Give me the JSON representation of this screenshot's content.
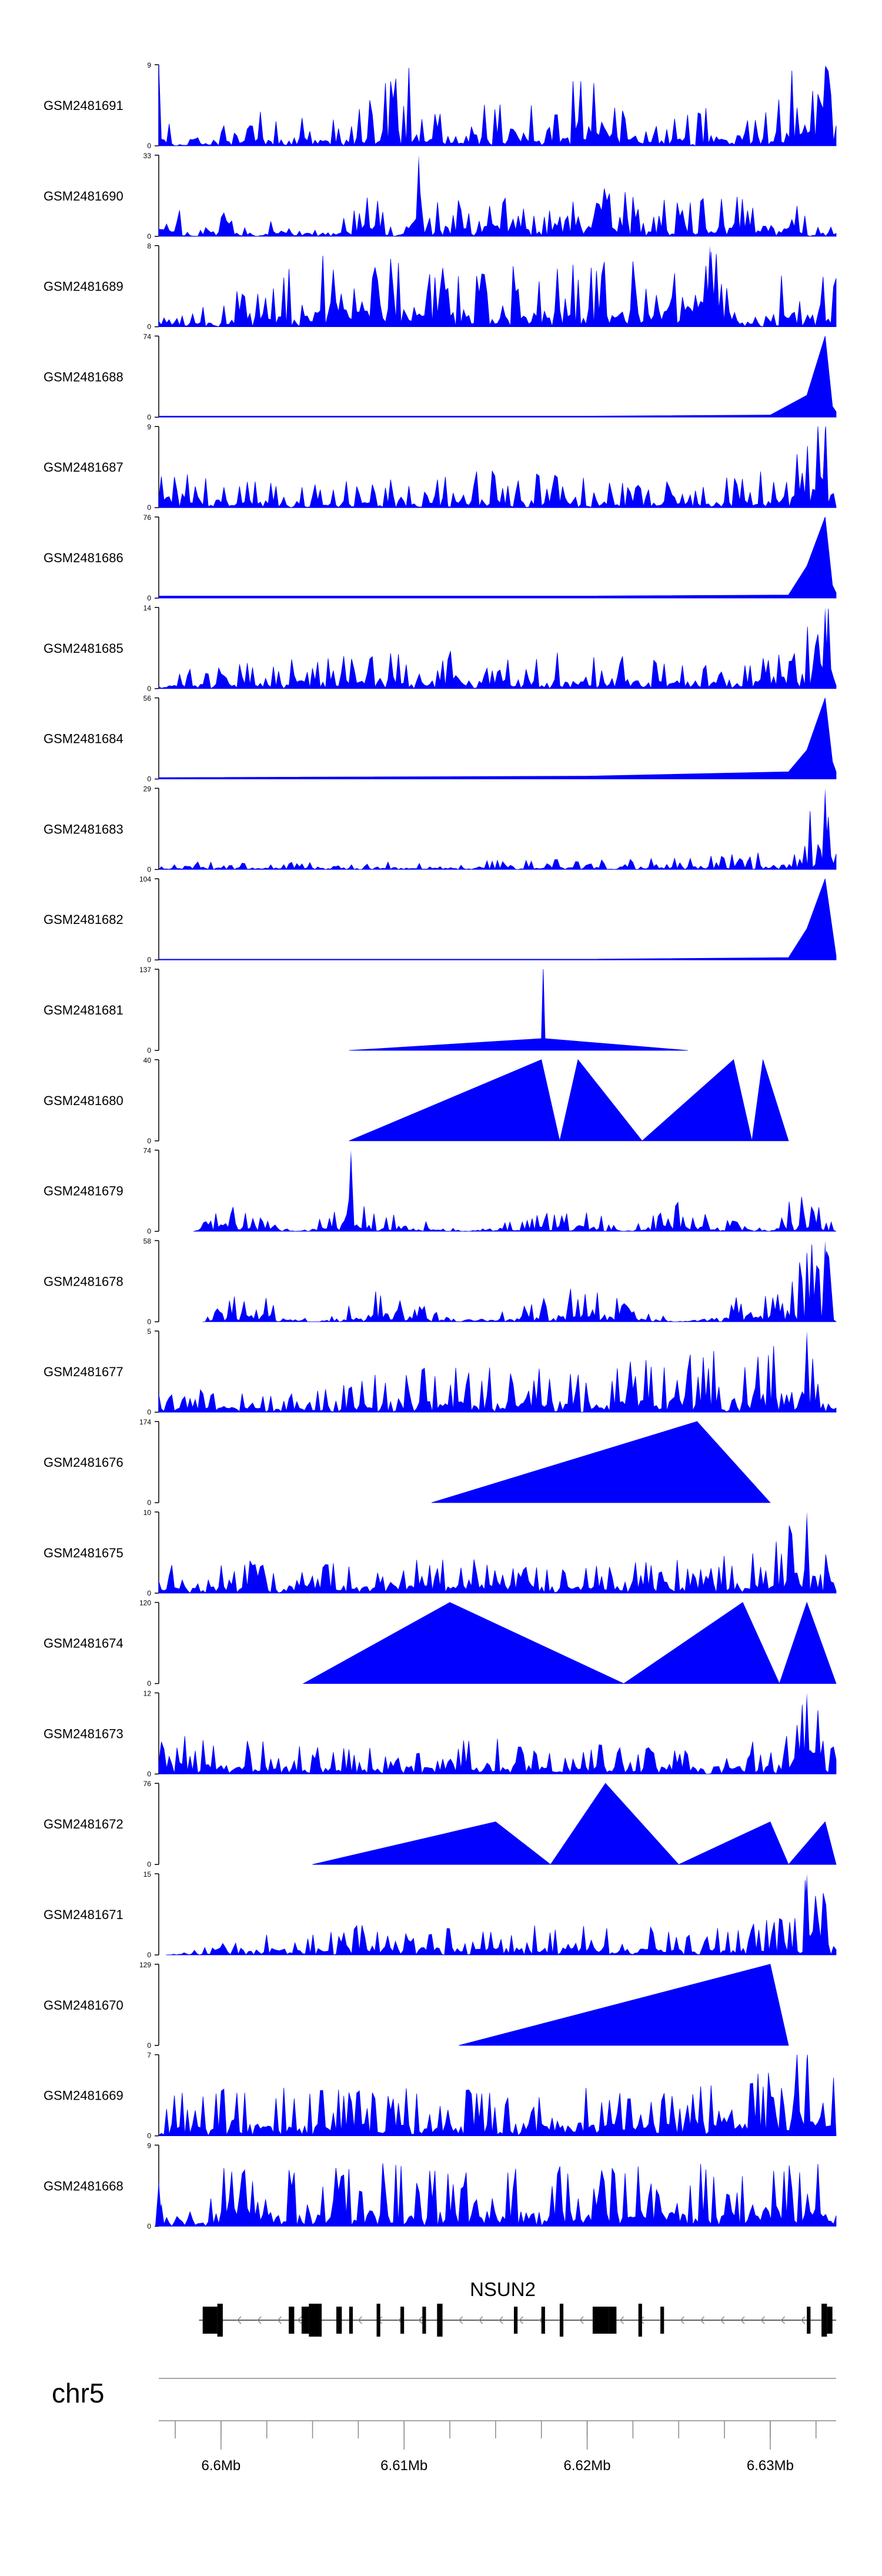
{
  "chart_data": {
    "type": "area",
    "chromosome": "chr5",
    "x_range_mb": [
      6.5966,
      6.6336
    ],
    "colors": {
      "signal": "#0000ff",
      "axis": "#000000",
      "gene": "#000000",
      "ruler": "#888888"
    },
    "tracks": [
      {
        "name": "GSM2481691",
        "ymax": "9",
        "profile": [
          [
            6.5966,
            8.5
          ],
          [
            6.5975,
            0
          ],
          [
            6.6,
            2
          ],
          [
            6.603,
            3
          ],
          [
            6.607,
            2
          ],
          [
            6.61,
            8
          ],
          [
            6.611,
            2
          ],
          [
            6.616,
            6
          ],
          [
            6.618,
            2
          ],
          [
            6.62,
            7.5
          ],
          [
            6.623,
            2
          ],
          [
            6.63,
            4
          ],
          [
            6.633,
            9
          ],
          [
            6.6336,
            3
          ]
        ]
      },
      {
        "name": "GSM2481690",
        "ymax": "33",
        "profile": [
          [
            6.5966,
            20
          ],
          [
            6.5985,
            0
          ],
          [
            6.6,
            10
          ],
          [
            6.602,
            0
          ],
          [
            6.604,
            15
          ],
          [
            6.606,
            0
          ],
          [
            6.608,
            15
          ],
          [
            6.61,
            5
          ],
          [
            6.6108,
            33
          ],
          [
            6.612,
            8
          ],
          [
            6.614,
            15
          ],
          [
            6.618,
            8
          ],
          [
            6.621,
            15
          ],
          [
            6.625,
            10
          ],
          [
            6.63,
            15
          ],
          [
            6.6336,
            5
          ]
        ]
      },
      {
        "name": "GSM2481689",
        "ymax": "8",
        "profile": [
          [
            6.5966,
            1
          ],
          [
            6.6,
            2
          ],
          [
            6.604,
            5
          ],
          [
            6.608,
            5
          ],
          [
            6.61,
            6
          ],
          [
            6.614,
            4
          ],
          [
            6.62,
            5
          ],
          [
            6.625,
            6
          ],
          [
            6.6267,
            8
          ],
          [
            6.628,
            2
          ],
          [
            6.632,
            5
          ],
          [
            6.6336,
            4
          ]
        ]
      },
      {
        "name": "GSM2481688",
        "ymax": "74",
        "profile": [
          [
            6.5966,
            1
          ],
          [
            6.62,
            1
          ],
          [
            6.63,
            2
          ],
          [
            6.632,
            20
          ],
          [
            6.633,
            74
          ],
          [
            6.6334,
            10
          ],
          [
            6.6336,
            5
          ]
        ]
      },
      {
        "name": "GSM2481687",
        "ymax": "9",
        "profile": [
          [
            6.5966,
            3
          ],
          [
            6.605,
            2
          ],
          [
            6.615,
            3
          ],
          [
            6.625,
            2
          ],
          [
            6.63,
            3
          ],
          [
            6.632,
            6
          ],
          [
            6.633,
            9
          ],
          [
            6.6336,
            2
          ]
        ]
      },
      {
        "name": "GSM2481686",
        "ymax": "76",
        "profile": [
          [
            6.5966,
            2
          ],
          [
            6.62,
            2
          ],
          [
            6.631,
            3
          ],
          [
            6.632,
            30
          ],
          [
            6.633,
            76
          ],
          [
            6.6334,
            12
          ],
          [
            6.6336,
            5
          ]
        ]
      },
      {
        "name": "GSM2481685",
        "ymax": "14",
        "profile": [
          [
            6.5966,
            2
          ],
          [
            6.605,
            4
          ],
          [
            6.615,
            5
          ],
          [
            6.625,
            4
          ],
          [
            6.63,
            5
          ],
          [
            6.632,
            8
          ],
          [
            6.633,
            14
          ],
          [
            6.6336,
            3
          ]
        ]
      },
      {
        "name": "GSM2481684",
        "ymax": "56",
        "profile": [
          [
            6.5966,
            1
          ],
          [
            6.62,
            2
          ],
          [
            6.631,
            5
          ],
          [
            6.632,
            20
          ],
          [
            6.633,
            56
          ],
          [
            6.6334,
            12
          ],
          [
            6.6336,
            5
          ]
        ]
      },
      {
        "name": "GSM2481683",
        "ymax": "29",
        "profile": [
          [
            6.5966,
            2
          ],
          [
            6.61,
            2
          ],
          [
            6.625,
            3
          ],
          [
            6.631,
            5
          ],
          [
            6.632,
            15
          ],
          [
            6.633,
            29
          ],
          [
            6.6336,
            5
          ]
        ]
      },
      {
        "name": "GSM2481682",
        "ymax": "104",
        "profile": [
          [
            6.5966,
            1
          ],
          [
            6.62,
            1
          ],
          [
            6.631,
            3
          ],
          [
            6.632,
            40
          ],
          [
            6.633,
            104
          ],
          [
            6.6336,
            5
          ]
        ]
      },
      {
        "name": "GSM2481681",
        "ymax": "137",
        "profile": [
          [
            6.607,
            0
          ],
          [
            6.6175,
            20
          ],
          [
            6.6176,
            137
          ],
          [
            6.6177,
            20
          ],
          [
            6.6255,
            0
          ]
        ]
      },
      {
        "name": "GSM2481680",
        "ymax": "40",
        "profile": [
          [
            6.607,
            0
          ],
          [
            6.6175,
            40
          ],
          [
            6.6185,
            0
          ],
          [
            6.6195,
            40
          ],
          [
            6.623,
            0
          ],
          [
            6.628,
            40
          ],
          [
            6.629,
            0
          ],
          [
            6.6296,
            40
          ],
          [
            6.631,
            0
          ]
        ]
      },
      {
        "name": "GSM2481679",
        "ymax": "74",
        "profile": [
          [
            6.5985,
            0
          ],
          [
            6.6,
            20
          ],
          [
            6.604,
            0
          ],
          [
            6.607,
            20
          ],
          [
            6.6071,
            74
          ],
          [
            6.6072,
            20
          ],
          [
            6.6135,
            0
          ],
          [
            6.62,
            20
          ],
          [
            6.622,
            0
          ],
          [
            6.625,
            20
          ],
          [
            6.63,
            0
          ],
          [
            6.632,
            40
          ],
          [
            6.6336,
            0
          ]
        ]
      },
      {
        "name": "GSM2481678",
        "ymax": "58",
        "profile": [
          [
            6.599,
            0
          ],
          [
            6.601,
            20
          ],
          [
            6.605,
            0
          ],
          [
            6.609,
            20
          ],
          [
            6.613,
            0
          ],
          [
            6.62,
            20
          ],
          [
            6.625,
            0
          ],
          [
            6.63,
            20
          ],
          [
            6.632,
            40
          ],
          [
            6.633,
            58
          ],
          [
            6.6336,
            0
          ]
        ]
      },
      {
        "name": "GSM2481677",
        "ymax": "5",
        "profile": [
          [
            6.5966,
            1
          ],
          [
            6.605,
            1
          ],
          [
            6.61,
            2
          ],
          [
            6.615,
            2
          ],
          [
            6.62,
            2
          ],
          [
            6.63,
            3
          ],
          [
            6.631,
            4
          ],
          [
            6.632,
            5
          ],
          [
            6.6336,
            1
          ]
        ]
      },
      {
        "name": "GSM2481676",
        "ymax": "174",
        "profile": [
          [
            6.6115,
            0
          ],
          [
            6.626,
            174
          ],
          [
            6.63,
            0
          ]
        ]
      },
      {
        "name": "GSM2481675",
        "ymax": "10",
        "profile": [
          [
            6.5966,
            3
          ],
          [
            6.605,
            3
          ],
          [
            6.615,
            3
          ],
          [
            6.625,
            3
          ],
          [
            6.63,
            4
          ],
          [
            6.632,
            10
          ],
          [
            6.6336,
            3
          ]
        ]
      },
      {
        "name": "GSM2481674",
        "ymax": "120",
        "profile": [
          [
            6.6045,
            0
          ],
          [
            6.6125,
            120
          ],
          [
            6.622,
            0
          ],
          [
            6.6285,
            120
          ],
          [
            6.6305,
            0
          ],
          [
            6.632,
            120
          ],
          [
            6.6336,
            0
          ]
        ]
      },
      {
        "name": "GSM2481673",
        "ymax": "12",
        "profile": [
          [
            6.5966,
            5
          ],
          [
            6.605,
            3
          ],
          [
            6.615,
            4
          ],
          [
            6.625,
            3
          ],
          [
            6.63,
            4
          ],
          [
            6.632,
            12
          ],
          [
            6.6336,
            4
          ]
        ]
      },
      {
        "name": "GSM2481672",
        "ymax": "76",
        "profile": [
          [
            6.605,
            0
          ],
          [
            6.615,
            40
          ],
          [
            6.618,
            0
          ],
          [
            6.621,
            76
          ],
          [
            6.625,
            0
          ],
          [
            6.63,
            40
          ],
          [
            6.631,
            0
          ],
          [
            6.633,
            40
          ],
          [
            6.6336,
            0
          ]
        ]
      },
      {
        "name": "GSM2481671",
        "ymax": "15",
        "profile": [
          [
            6.597,
            0
          ],
          [
            6.605,
            4
          ],
          [
            6.615,
            4
          ],
          [
            6.625,
            4
          ],
          [
            6.631,
            5
          ],
          [
            6.632,
            15
          ],
          [
            6.6336,
            4
          ]
        ]
      },
      {
        "name": "GSM2481670",
        "ymax": "129",
        "profile": [
          [
            6.613,
            0
          ],
          [
            6.63,
            129
          ],
          [
            6.631,
            0
          ]
        ]
      },
      {
        "name": "GSM2481669",
        "ymax": "7",
        "profile": [
          [
            6.5966,
            3
          ],
          [
            6.605,
            3
          ],
          [
            6.615,
            3
          ],
          [
            6.625,
            3
          ],
          [
            6.63,
            4
          ],
          [
            6.632,
            7
          ],
          [
            6.6336,
            4
          ]
        ]
      },
      {
        "name": "GSM2481668",
        "ymax": "9",
        "profile": [
          [
            6.5966,
            5
          ],
          [
            6.605,
            5
          ],
          [
            6.615,
            5
          ],
          [
            6.625,
            5
          ],
          [
            6.6336,
            5
          ]
        ]
      }
    ],
    "gene": {
      "name": "NSUN2",
      "strand": "-",
      "start_mb": 6.5988,
      "end_mb": 6.6336,
      "exons_mb": [
        [
          6.599,
          6.5998
        ],
        [
          6.5998,
          6.6001
        ],
        [
          6.6037,
          6.604
        ],
        [
          6.6044,
          6.6048
        ],
        [
          6.6048,
          6.6055
        ],
        [
          6.6063,
          6.6066
        ],
        [
          6.607,
          6.6072
        ],
        [
          6.6085,
          6.6087
        ],
        [
          6.6098,
          6.61
        ],
        [
          6.611,
          6.6112
        ],
        [
          6.6118,
          6.6121
        ],
        [
          6.616,
          6.6162
        ],
        [
          6.6175,
          6.6177
        ],
        [
          6.6185,
          6.6187
        ],
        [
          6.6203,
          6.6212
        ],
        [
          6.6212,
          6.6216
        ],
        [
          6.6228,
          6.623
        ],
        [
          6.624,
          6.6242
        ],
        [
          6.632,
          6.6322
        ],
        [
          6.6328,
          6.6331
        ],
        [
          6.6331,
          6.6334
        ]
      ]
    },
    "axis": {
      "ticks_mb": [
        6.5975,
        6.6,
        6.6025,
        6.605,
        6.6075,
        6.61,
        6.6125,
        6.615,
        6.6175,
        6.62,
        6.6225,
        6.625,
        6.6275,
        6.63,
        6.6325
      ],
      "labeled_ticks": [
        {
          "mb": 6.6,
          "label": "6.6Mb"
        },
        {
          "mb": 6.61,
          "label": "6.61Mb"
        },
        {
          "mb": 6.62,
          "label": "6.62Mb"
        },
        {
          "mb": 6.63,
          "label": "6.63Mb"
        }
      ]
    }
  }
}
